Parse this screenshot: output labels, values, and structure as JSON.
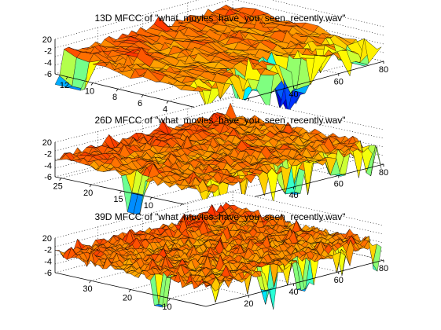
{
  "chart_data": [
    {
      "type": "surface",
      "title": "13D MFCC of \"what_movies_have_you_seen_recently.wav\"",
      "x_ticks": [
        20,
        40,
        60,
        80
      ],
      "xlim": [
        1,
        80
      ],
      "y_ticks": [
        12,
        10,
        8,
        6,
        4,
        2
      ],
      "ylim": [
        1,
        13
      ],
      "z_ticks": [
        "20",
        "-2",
        "-4",
        "-6"
      ],
      "zlim": [
        -70,
        25
      ],
      "colormap": "jet",
      "grid": true,
      "dims": 13,
      "frames": 80,
      "notable_features": [
        {
          "dim": 12,
          "frame": 2,
          "value": -60
        },
        {
          "dim": 2,
          "frame": 28,
          "value": -35
        },
        {
          "dim": 2,
          "frame": 43,
          "value": -45
        },
        {
          "dim": 2,
          "frame": 46,
          "value": -60
        },
        {
          "dim": 2,
          "frame": 72,
          "value": -35
        }
      ]
    },
    {
      "type": "surface",
      "title": "26D MFCC of \"what_movies_have_you_seen_recently.wav\"",
      "x_ticks": [
        20,
        40,
        60,
        80
      ],
      "xlim": [
        1,
        80
      ],
      "y_ticks": [
        25,
        20,
        15,
        10,
        5
      ],
      "ylim": [
        1,
        26
      ],
      "z_ticks": [
        "20",
        "-2",
        "-4",
        "-6"
      ],
      "zlim": [
        -70,
        25
      ],
      "colormap": "jet",
      "grid": true,
      "dims": 26,
      "frames": 80,
      "notable_features": [
        {
          "dim": 13,
          "frame": 1,
          "value": -60
        },
        {
          "dim": 2,
          "frame": 42,
          "value": -55
        },
        {
          "dim": 2,
          "frame": 62,
          "value": -40
        }
      ]
    },
    {
      "type": "surface",
      "title": "39D MFCC of \"what_movies_have_you_seen_recently.wav\"",
      "x_ticks": [
        20,
        40,
        60,
        80
      ],
      "xlim": [
        1,
        80
      ],
      "y_ticks": [
        30,
        20,
        10
      ],
      "ylim": [
        1,
        39
      ],
      "z_ticks": [
        "20",
        "-2",
        "-4",
        "-6"
      ],
      "zlim": [
        -70,
        25
      ],
      "colormap": "jet",
      "grid": true,
      "dims": 39,
      "frames": 80,
      "notable_features": [
        {
          "dim": 13,
          "frame": 2,
          "value": -60
        },
        {
          "dim": 2,
          "frame": 30,
          "value": -40
        },
        {
          "dim": 2,
          "frame": 46,
          "value": -60
        }
      ]
    }
  ]
}
